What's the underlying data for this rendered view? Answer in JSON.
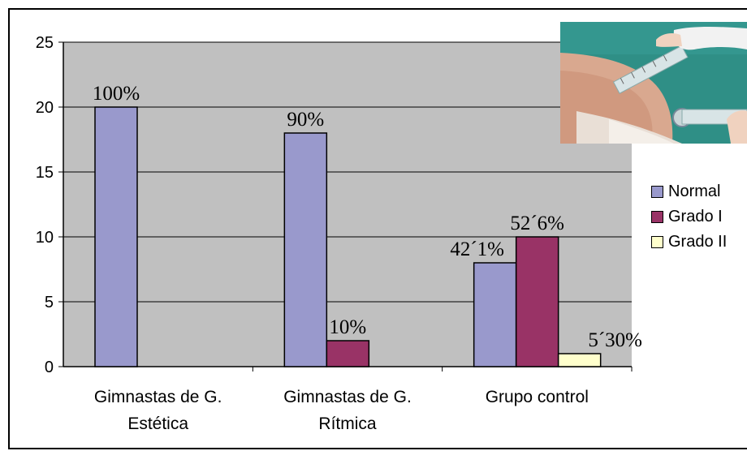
{
  "chart_data": {
    "type": "bar",
    "categories": [
      [
        "Gimnastas de G.",
        "Estética"
      ],
      [
        "Gimnastas de G.",
        "Rítmica"
      ],
      [
        "Grupo control"
      ]
    ],
    "series": [
      {
        "name": "Normal",
        "color": "#9999cc",
        "values": [
          20,
          18,
          8
        ],
        "labels": [
          "100%",
          "90%",
          "42´1%"
        ]
      },
      {
        "name": "Grado I",
        "color": "#993366",
        "values": [
          0,
          2,
          10
        ],
        "labels": [
          "",
          "10%",
          "52´6%"
        ]
      },
      {
        "name": "Grado II",
        "color": "#ffffcc",
        "values": [
          0,
          0,
          1
        ],
        "labels": [
          "",
          "",
          "5´30%"
        ]
      }
    ],
    "yticks": [
      0,
      5,
      10,
      15,
      20,
      25
    ],
    "ylim": [
      0,
      25
    ],
    "grid": true,
    "legend_position": "right",
    "plot_background": "#c0c0c0",
    "inset_image": "photo-of-goniometer-measurement"
  }
}
